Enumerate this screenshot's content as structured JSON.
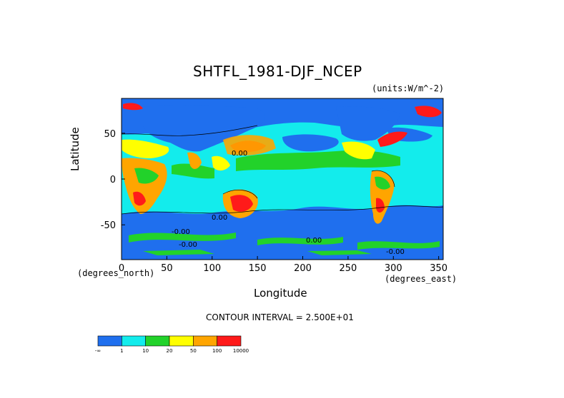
{
  "chart_data": {
    "type": "heatmap",
    "title": "SHTFL_1981-DJF_NCEP",
    "units": "(units:W/m^-2)",
    "xlabel": "Longitude",
    "ylabel": "Latitude",
    "x_unit_left": "(degrees_north)",
    "x_unit_right": "(degrees_east)",
    "xlim": [
      0,
      355
    ],
    "ylim": [
      -88,
      88
    ],
    "x_ticks": [
      0,
      50,
      100,
      150,
      200,
      250,
      300,
      350
    ],
    "y_ticks": [
      50,
      0,
      -50
    ],
    "contour_interval_text": "CONTOUR INTERVAL = 2.500E+01",
    "colorbar": {
      "labels": [
        "-∞",
        "1",
        "10",
        "20",
        "50",
        "100",
        "10000"
      ],
      "colors": [
        "#1f6fee",
        "#13ecec",
        "#22d22a",
        "#ffff00",
        "#ffa500",
        "#ff1a1a"
      ]
    },
    "contour_labels": [
      "-0.00",
      "-0.00",
      "0.00",
      "0.00",
      "0.00",
      "-0.00"
    ]
  }
}
